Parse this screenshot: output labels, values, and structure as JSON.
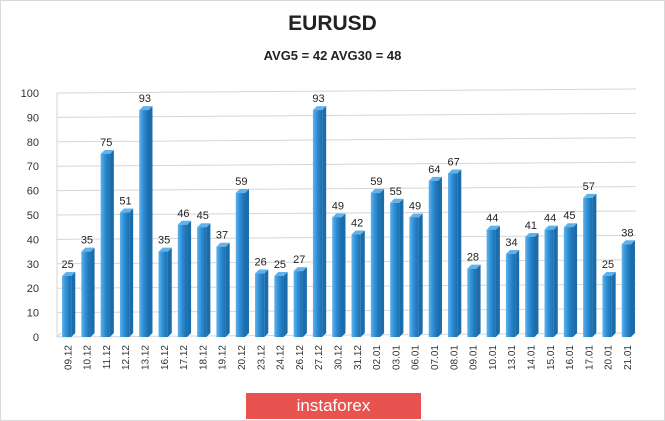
{
  "chart_data": {
    "type": "bar",
    "title": "EURUSD",
    "subtitle": "AVG5 = 42 AVG30 = 48",
    "categories": [
      "09.12",
      "10.12",
      "11.12",
      "12.12",
      "13.12",
      "16.12",
      "17.12",
      "18.12",
      "19.12",
      "20.12",
      "23.12",
      "24.12",
      "26.12",
      "27.12",
      "30.12",
      "31.12",
      "02.01",
      "03.01",
      "06.01",
      "07.01",
      "08.01",
      "09.01",
      "10.01",
      "13.01",
      "14.01",
      "15.01",
      "16.01",
      "17.01",
      "20.01",
      "21.01"
    ],
    "values": [
      25,
      35,
      75,
      51,
      93,
      35,
      46,
      45,
      37,
      59,
      26,
      25,
      27,
      93,
      49,
      42,
      59,
      55,
      49,
      64,
      67,
      28,
      44,
      34,
      41,
      44,
      45,
      57,
      25,
      38
    ],
    "ylim": [
      0,
      100
    ],
    "yticks": [
      0,
      10,
      20,
      30,
      40,
      50,
      60,
      70,
      80,
      90,
      100
    ],
    "grid": true,
    "bar_color": "#2e8fd6",
    "bar_color_light": "#5fb2ec",
    "bar_color_dark": "#1a6cab"
  },
  "watermark": {
    "text": "instaforex",
    "color": "#e8534f"
  }
}
